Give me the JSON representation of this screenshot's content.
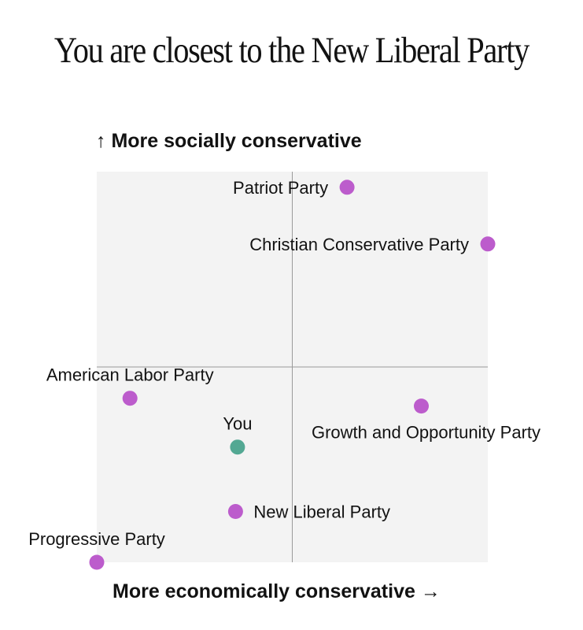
{
  "title": "You are closest to the New Liberal Party",
  "chart_data": {
    "type": "scatter",
    "title": "You are closest to the New Liberal Party",
    "ylabel": "More socially conservative",
    "ylabel_arrow": "↑",
    "xlabel": "More economically conservative",
    "xlabel_arrow": "→",
    "xlim": [
      -1,
      1
    ],
    "ylim": [
      -1,
      1
    ],
    "grid": "center crosshair",
    "colors": {
      "party": "#bc5ccc",
      "you": "#53a893",
      "background": "#f3f3f3",
      "crosshair": "#9a9a9a"
    },
    "points": [
      {
        "label": "Patriot Party",
        "x": 0.28,
        "y": 0.92,
        "kind": "party",
        "label_side": "left"
      },
      {
        "label": "Christian Conservative Party",
        "x": 1.0,
        "y": 0.63,
        "kind": "party",
        "label_side": "left"
      },
      {
        "label": "American Labor Party",
        "x": -0.83,
        "y": -0.16,
        "kind": "party",
        "label_side": "above"
      },
      {
        "label": "Growth and Opportunity Party",
        "x": 0.66,
        "y": -0.2,
        "kind": "party",
        "label_side": "below"
      },
      {
        "label": "You",
        "x": -0.28,
        "y": -0.41,
        "kind": "you",
        "label_side": "above"
      },
      {
        "label": "New Liberal Party",
        "x": -0.29,
        "y": -0.74,
        "kind": "party",
        "label_side": "right"
      },
      {
        "label": "Progressive Party",
        "x": -1.0,
        "y": -1.0,
        "kind": "party",
        "label_side": "above"
      }
    ]
  }
}
